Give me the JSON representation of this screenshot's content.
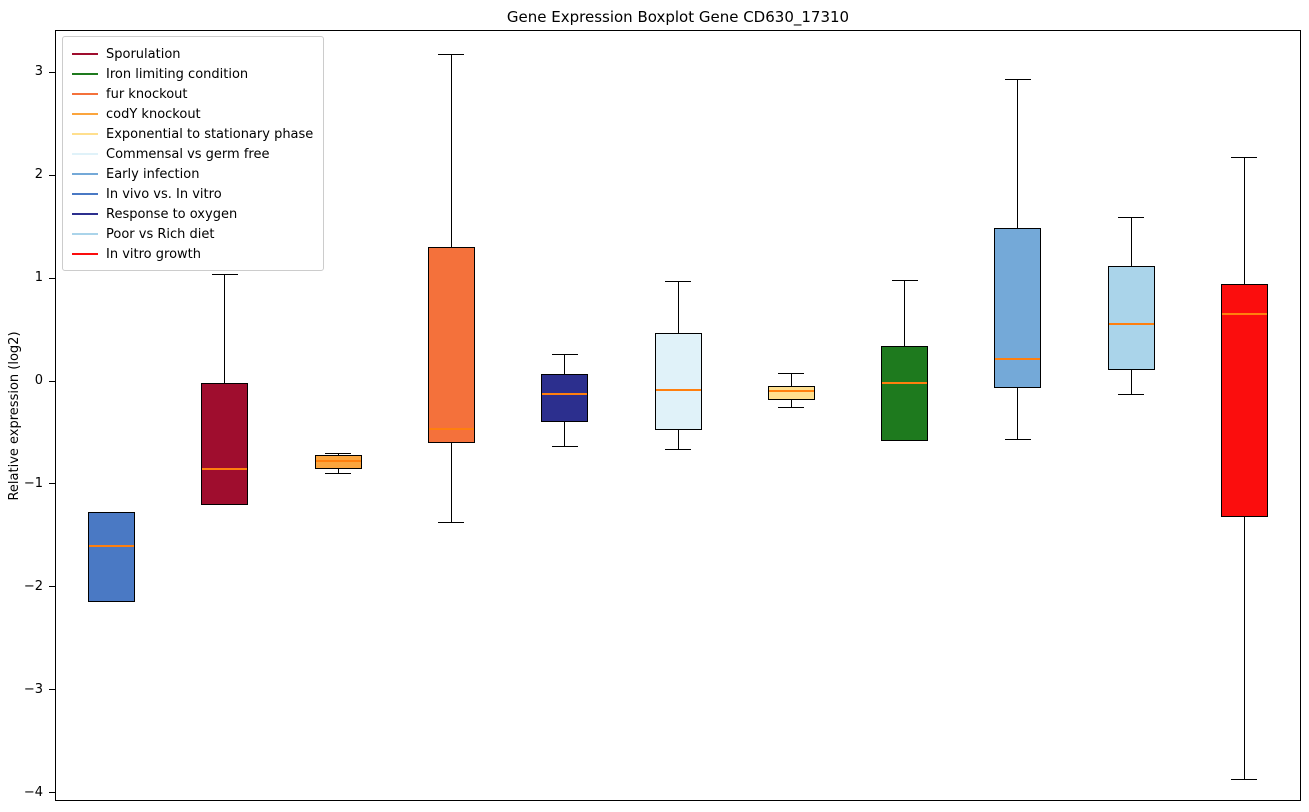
{
  "chart_data": {
    "type": "boxplot",
    "title": "Gene Expression Boxplot Gene CD630_17310",
    "ylabel": "Relative expression (log2)",
    "xlabel": "",
    "ylim": [
      -4.08,
      3.41
    ],
    "grid": false,
    "legend_position": "upper left",
    "median_color": "#ff7f0e",
    "yticks": [
      {
        "value": 3,
        "label": "3"
      },
      {
        "value": 2,
        "label": "2"
      },
      {
        "value": 1,
        "label": "1"
      },
      {
        "value": 0,
        "label": "0"
      },
      {
        "value": -1,
        "label": "−1"
      },
      {
        "value": -2,
        "label": "−2"
      },
      {
        "value": -3,
        "label": "−3"
      },
      {
        "value": -4,
        "label": "−4"
      }
    ],
    "legend": [
      {
        "label": "Sporulation",
        "color": "#9f0d2e"
      },
      {
        "label": "Iron limiting condition",
        "color": "#1e7a1e"
      },
      {
        "label": "fur knockout",
        "color": "#f4713b"
      },
      {
        "label": "codY knockout",
        "color": "#fba53d"
      },
      {
        "label": "Exponential to stationary phase",
        "color": "#ffdf8e"
      },
      {
        "label": "Commensal vs germ free",
        "color": "#e0f2f9"
      },
      {
        "label": "Early infection",
        "color": "#74a9d8"
      },
      {
        "label": "In vivo vs. In vitro",
        "color": "#4a79c4"
      },
      {
        "label": "Response to oxygen",
        "color": "#2c2f8e"
      },
      {
        "label": "Poor vs Rich diet",
        "color": "#aad4ea"
      },
      {
        "label": "In vitro growth",
        "color": "#fb0d0d"
      }
    ],
    "boxes": [
      {
        "condition": "In vivo vs. In vitro",
        "color": "#4a79c4",
        "whisker_low": -2.15,
        "q1": -2.15,
        "median": -1.6,
        "q3": -1.27,
        "whisker_high": -1.27
      },
      {
        "condition": "Sporulation",
        "color": "#9f0d2e",
        "whisker_low": -1.2,
        "q1": -1.2,
        "median": -0.85,
        "q3": -0.02,
        "whisker_high": 1.03
      },
      {
        "condition": "codY knockout",
        "color": "#fba53d",
        "whisker_low": -0.9,
        "q1": -0.85,
        "median": -0.78,
        "q3": -0.72,
        "whisker_high": -0.7
      },
      {
        "condition": "fur knockout",
        "color": "#f4713b",
        "whisker_low": -1.37,
        "q1": -0.6,
        "median": -0.47,
        "q3": 1.3,
        "whisker_high": 3.17
      },
      {
        "condition": "Response to oxygen",
        "color": "#2c2f8e",
        "whisker_low": -0.64,
        "q1": -0.4,
        "median": -0.13,
        "q3": 0.07,
        "whisker_high": 0.26
      },
      {
        "condition": "Commensal vs germ free",
        "color": "#e0f2f9",
        "whisker_low": -0.67,
        "q1": -0.48,
        "median": -0.09,
        "q3": 0.47,
        "whisker_high": 0.97
      },
      {
        "condition": "Exponential to stationary phase",
        "color": "#ffdf8e",
        "whisker_low": -0.26,
        "q1": -0.18,
        "median": -0.1,
        "q3": -0.05,
        "whisker_high": 0.07
      },
      {
        "condition": "Iron limiting condition",
        "color": "#1e7a1e",
        "whisker_low": -0.58,
        "q1": -0.58,
        "median": -0.02,
        "q3": 0.34,
        "whisker_high": 0.98
      },
      {
        "condition": "Early infection",
        "color": "#74a9d8",
        "whisker_low": -0.57,
        "q1": -0.07,
        "median": 0.21,
        "q3": 1.49,
        "whisker_high": 2.93
      },
      {
        "condition": "Poor vs Rich diet",
        "color": "#aad4ea",
        "whisker_low": -0.13,
        "q1": 0.11,
        "median": 0.55,
        "q3": 1.12,
        "whisker_high": 1.59
      },
      {
        "condition": "In vitro growth",
        "color": "#fb0d0d",
        "whisker_low": -3.87,
        "q1": -1.32,
        "median": 0.65,
        "q3": 0.94,
        "whisker_high": 2.17
      }
    ]
  }
}
